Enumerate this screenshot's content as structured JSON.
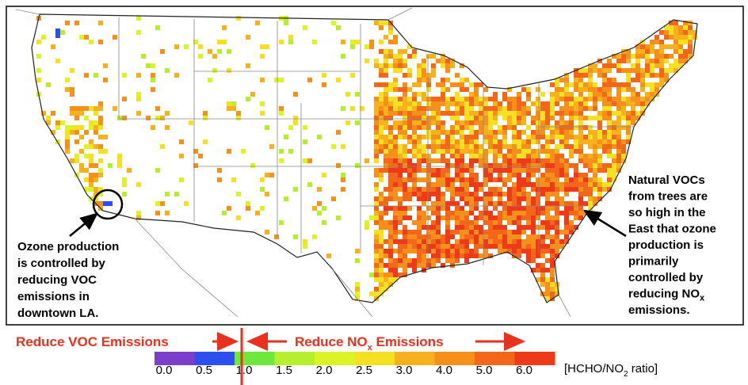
{
  "annotations": {
    "west": {
      "lines": [
        "Ozone production",
        "is controlled by",
        "reducing VOC",
        "emissions in",
        "downtown LA."
      ]
    },
    "east": {
      "lines": [
        "Natural VOCs",
        "from trees are",
        "so high in the",
        "East that ozone",
        "production is",
        "primarily",
        "controlled by",
        {
          "text": "reducing NO",
          "sub": "x"
        },
        "emissions."
      ]
    }
  },
  "regimes": {
    "voc": "Reduce VOC Emissions",
    "nox": {
      "text": "Reduce NO",
      "sub": "x",
      "end": " Emissions"
    }
  },
  "colorbar": {
    "ticks": [
      "0.0",
      "0.5",
      "1.0",
      "1.5",
      "2.0",
      "2.5",
      "3.0",
      "4.0",
      "5.0",
      "6.0"
    ],
    "colors": [
      "#7b3fc9",
      "#2d4ff0",
      "#6ee83c",
      "#b6ef2c",
      "#dcf325",
      "#f5e022",
      "#f6b11d",
      "#f5901b",
      "#f2671a",
      "#ee3a18"
    ],
    "label": {
      "text": "[HCHO/NO",
      "sub": "2",
      "end": " ratio]"
    }
  }
}
